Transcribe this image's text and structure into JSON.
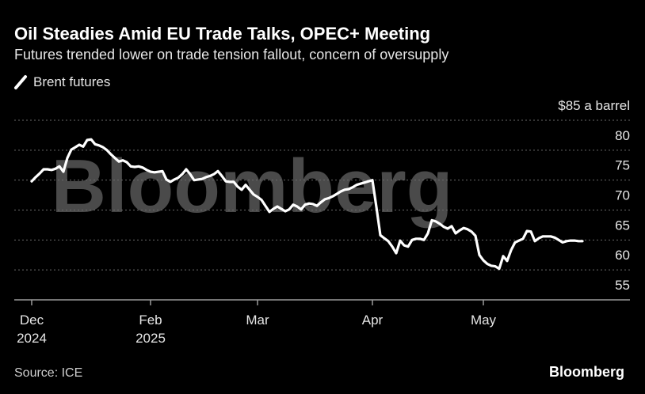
{
  "chart_data": {
    "type": "line",
    "title": "Oil Steadies Amid EU Trade Talks, OPEC+ Meeting",
    "subtitle": "Futures trended lower on trade tension fallout, concern of oversupply",
    "source": "Source: ICE",
    "brand": "Bloomberg",
    "watermark": "Bloomberg",
    "legend": "top-left",
    "categories": [
      "Dec\n2024",
      null,
      null,
      null,
      null,
      null,
      null,
      null,
      null,
      null,
      null,
      null,
      null,
      null,
      null,
      null,
      null,
      null,
      null,
      null,
      null,
      null,
      null,
      null,
      null,
      null,
      null,
      null,
      null,
      null,
      "Feb\n2025",
      null,
      null,
      null,
      null,
      null,
      null,
      null,
      null,
      null,
      null,
      null,
      null,
      null,
      null,
      null,
      null,
      null,
      null,
      null,
      null,
      null,
      null,
      null,
      null,
      null,
      null,
      "Mar",
      null,
      null,
      null,
      null,
      null,
      null,
      null,
      null,
      null,
      null,
      null,
      null,
      null,
      null,
      null,
      null,
      null,
      null,
      null,
      null,
      null,
      null,
      null,
      null,
      null,
      null,
      null,
      null,
      "Apr",
      null,
      null,
      null,
      null,
      null,
      null,
      null,
      null,
      null,
      null,
      null,
      null,
      null,
      null,
      null,
      null,
      null,
      null,
      null,
      null,
      null,
      null,
      null,
      null,
      null,
      null,
      null,
      "May",
      null,
      null,
      null,
      null,
      null,
      null,
      null,
      null,
      null,
      null,
      null,
      null,
      null,
      null,
      null,
      null,
      null,
      null,
      null,
      null,
      null,
      null,
      null,
      null,
      null
    ],
    "series": [
      {
        "name": "Brent futures",
        "color": "#ffffff",
        "values": [
          74.8,
          75.5,
          76.1,
          76.8,
          76.8,
          76.7,
          76.9,
          77.3,
          76.4,
          78.7,
          80.1,
          80.5,
          80.9,
          80.6,
          81.7,
          81.8,
          81.0,
          80.8,
          80.5,
          80.0,
          79.3,
          78.7,
          78.1,
          78.3,
          78.0,
          77.3,
          77.2,
          77.3,
          77.1,
          76.7,
          76.4,
          76.3,
          76.4,
          76.5,
          75.1,
          74.7,
          75.1,
          75.4,
          76.0,
          76.8,
          76.0,
          75.0,
          75.1,
          75.2,
          75.5,
          75.7,
          76.0,
          76.5,
          75.7,
          74.8,
          74.7,
          74.7,
          73.9,
          73.4,
          74.2,
          73.4,
          72.6,
          72.2,
          71.7,
          70.7,
          69.7,
          70.2,
          70.6,
          70.2,
          69.8,
          70.1,
          70.9,
          70.6,
          70.1,
          70.9,
          71.1,
          71.0,
          70.7,
          71.3,
          71.8,
          72.0,
          72.3,
          72.7,
          73.1,
          73.4,
          73.5,
          73.8,
          74.2,
          74.4,
          74.6,
          74.8,
          75.0,
          70.5,
          65.8,
          65.3,
          64.8,
          63.9,
          62.8,
          64.9,
          64.1,
          63.9,
          65.0,
          65.2,
          65.2,
          65.0,
          66.1,
          68.3,
          68.1,
          67.7,
          67.2,
          66.9,
          67.3,
          66.1,
          66.6,
          67.0,
          66.8,
          66.4,
          65.7,
          62.5,
          61.6,
          61.0,
          60.7,
          60.6,
          60.2,
          62.3,
          61.5,
          63.3,
          64.6,
          64.9,
          65.2,
          66.5,
          66.4,
          64.8,
          65.3,
          65.6,
          65.6,
          65.6,
          65.4,
          65.0,
          64.6,
          64.8,
          64.9,
          64.9,
          64.8,
          64.8
        ]
      }
    ],
    "ylim": [
      55,
      85
    ],
    "yticks": [
      55,
      60,
      65,
      70,
      75,
      80,
      {
        "value": 85,
        "label": "$85 a barrel"
      }
    ],
    "grid": true
  }
}
